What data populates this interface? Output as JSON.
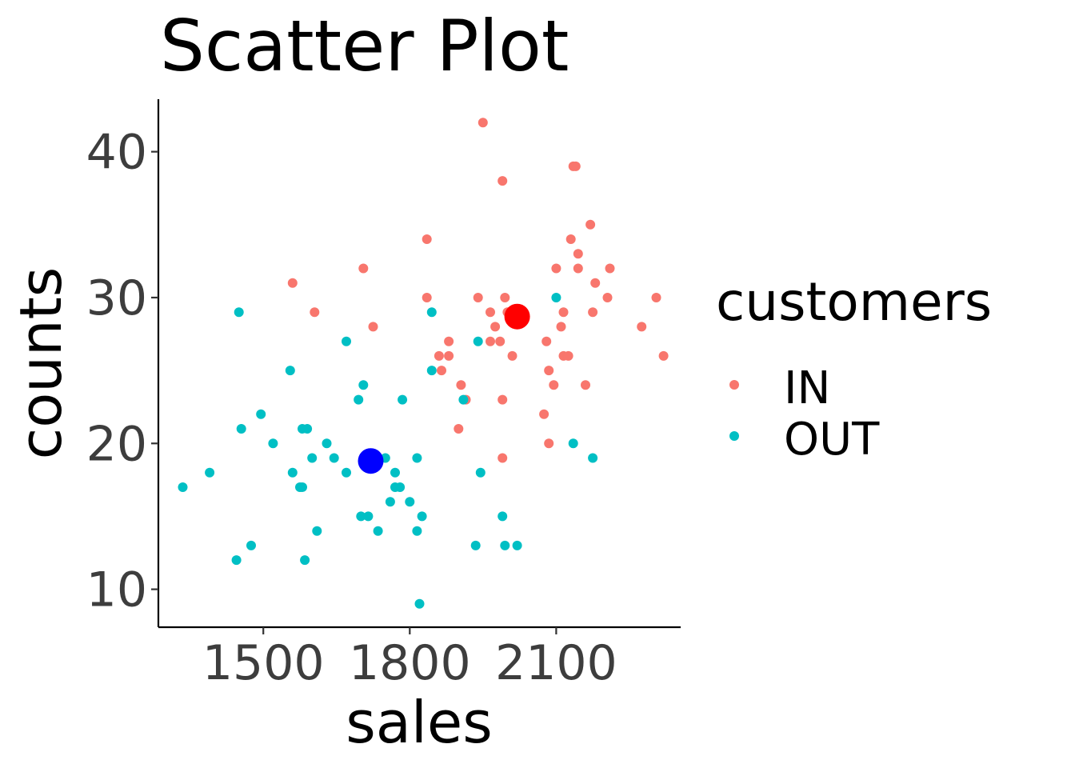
{
  "chart_data": {
    "type": "scatter",
    "title": "Scatter Plot",
    "xlabel": "sales",
    "ylabel": "counts",
    "xlim": [
      1285,
      2355
    ],
    "ylim": [
      7.4,
      43.6
    ],
    "xticks": [
      1500,
      1800,
      2100
    ],
    "yticks": [
      10,
      20,
      30,
      40
    ],
    "grid": false,
    "legend": {
      "title": "customers",
      "position": "right"
    },
    "series": [
      {
        "name": "IN",
        "color": "#F8766D",
        "points": [
          [
            1950,
            42
          ],
          [
            1990,
            38
          ],
          [
            2135,
            39
          ],
          [
            2140,
            39
          ],
          [
            2170,
            35
          ],
          [
            1835,
            34
          ],
          [
            2130,
            34
          ],
          [
            2145,
            33
          ],
          [
            1705,
            32
          ],
          [
            2100,
            32
          ],
          [
            2145,
            32
          ],
          [
            2210,
            32
          ],
          [
            1560,
            31
          ],
          [
            2180,
            31
          ],
          [
            1605,
            29
          ],
          [
            1835,
            30
          ],
          [
            1940,
            30
          ],
          [
            1995,
            30
          ],
          [
            2205,
            30
          ],
          [
            2305,
            30
          ],
          [
            1965,
            29
          ],
          [
            2000,
            29
          ],
          [
            2115,
            29
          ],
          [
            2175,
            29
          ],
          [
            1725,
            28
          ],
          [
            1975,
            28
          ],
          [
            2110,
            28
          ],
          [
            2275,
            28
          ],
          [
            1965,
            27
          ],
          [
            1985,
            27
          ],
          [
            2080,
            27
          ],
          [
            1880,
            27
          ],
          [
            1860,
            26
          ],
          [
            1880,
            26
          ],
          [
            2010,
            26
          ],
          [
            2115,
            26
          ],
          [
            2125,
            26
          ],
          [
            2320,
            26
          ],
          [
            1865,
            25
          ],
          [
            2085,
            25
          ],
          [
            1905,
            24
          ],
          [
            2095,
            24
          ],
          [
            2160,
            24
          ],
          [
            1915,
            23
          ],
          [
            1990,
            23
          ],
          [
            2075,
            22
          ],
          [
            1900,
            21
          ],
          [
            2085,
            20
          ],
          [
            1990,
            19
          ]
        ]
      },
      {
        "name": "OUT",
        "color": "#00BFC4",
        "points": [
          [
            1450,
            29
          ],
          [
            1845,
            29
          ],
          [
            2100,
            30
          ],
          [
            1670,
            27
          ],
          [
            1940,
            27
          ],
          [
            1555,
            25
          ],
          [
            1845,
            25
          ],
          [
            1705,
            24
          ],
          [
            1695,
            23
          ],
          [
            1785,
            23
          ],
          [
            1910,
            23
          ],
          [
            1495,
            22
          ],
          [
            1455,
            21
          ],
          [
            1580,
            21
          ],
          [
            1590,
            21
          ],
          [
            1520,
            20
          ],
          [
            1630,
            20
          ],
          [
            2135,
            20
          ],
          [
            1600,
            19
          ],
          [
            1645,
            19
          ],
          [
            1750,
            19
          ],
          [
            1815,
            19
          ],
          [
            2175,
            19
          ],
          [
            1335,
            17
          ],
          [
            1390,
            18
          ],
          [
            1560,
            18
          ],
          [
            1670,
            18
          ],
          [
            1770,
            18
          ],
          [
            1945,
            18
          ],
          [
            1575,
            17
          ],
          [
            1580,
            17
          ],
          [
            1770,
            17
          ],
          [
            1780,
            17
          ],
          [
            1760,
            16
          ],
          [
            1800,
            16
          ],
          [
            1700,
            15
          ],
          [
            1715,
            15
          ],
          [
            1825,
            15
          ],
          [
            1990,
            15
          ],
          [
            1610,
            14
          ],
          [
            1735,
            14
          ],
          [
            1815,
            14
          ],
          [
            1475,
            13
          ],
          [
            1935,
            13
          ],
          [
            1995,
            13
          ],
          [
            2020,
            13
          ],
          [
            1445,
            12
          ],
          [
            1585,
            12
          ],
          [
            1820,
            9
          ]
        ]
      }
    ],
    "centroids": [
      {
        "series": "IN",
        "x": 2020,
        "y": 28.7,
        "color": "#FF0000"
      },
      {
        "series": "OUT",
        "x": 1720,
        "y": 18.8,
        "color": "#0000FF"
      }
    ]
  }
}
